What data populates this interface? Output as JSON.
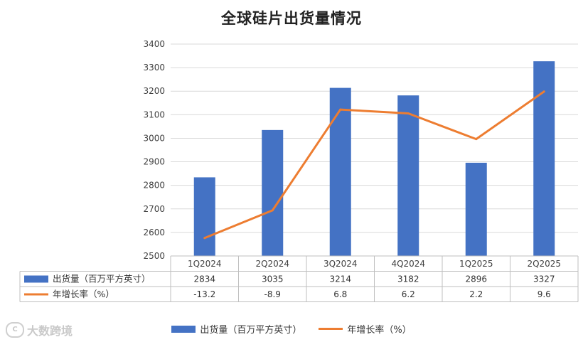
{
  "chart_data": {
    "type": "bar",
    "title": "全球硅片出货量情况",
    "categories": [
      "1Q2024",
      "2Q2024",
      "3Q2024",
      "4Q2024",
      "1Q2025",
      "2Q2025"
    ],
    "series": [
      {
        "name": "出货量（百万平方英寸）",
        "type": "bar",
        "axis": "left",
        "color": "#4472c4",
        "values": [
          2834,
          3035,
          3214,
          3182,
          2896,
          3327
        ]
      },
      {
        "name": "年增长率（%）",
        "type": "line",
        "axis": "right-hidden",
        "color": "#ed7d31",
        "values": [
          -13.2,
          -8.9,
          6.8,
          6.2,
          2.2,
          9.6
        ]
      }
    ],
    "y_ticks": [
      "3400",
      "3300",
      "3200",
      "3100",
      "3000",
      "2900",
      "2800",
      "2700",
      "2600",
      "2500"
    ],
    "ylim": [
      2500,
      3400
    ],
    "growth_table_values": [
      "-13.2",
      "-8.9",
      "6.8",
      "6.2",
      "2.2",
      "9.6"
    ],
    "shipment_table_values": [
      "2834",
      "3035",
      "3214",
      "3182",
      "2896",
      "3327"
    ],
    "grid": true,
    "legend_position": "bottom"
  },
  "watermark": {
    "text": "大数跨境",
    "logo_glyph": "C"
  }
}
